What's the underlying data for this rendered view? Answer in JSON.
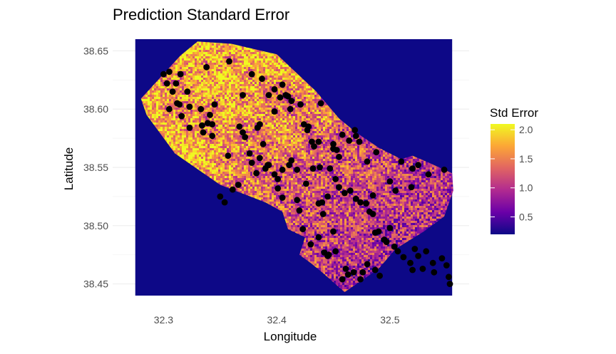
{
  "chart_data": {
    "type": "heatmap",
    "title": "Prediction Standard Error",
    "xlabel": "Longitude",
    "ylabel": "Latitude",
    "xlim": [
      32.255,
      32.57
    ],
    "ylim": [
      38.44,
      38.66
    ],
    "panel_extent": {
      "x": [
        32.275,
        32.555
      ],
      "y": [
        38.44,
        38.66
      ]
    },
    "x_ticks": [
      32.3,
      32.4,
      32.5
    ],
    "x_tick_labels": [
      "32.3",
      "32.4",
      "32.5"
    ],
    "y_ticks": [
      38.45,
      38.5,
      38.55,
      38.6,
      38.65
    ],
    "y_tick_labels": [
      "38.45",
      "38.50",
      "38.55",
      "38.60",
      "38.65"
    ],
    "grid": true,
    "legend": {
      "title": "Std Error",
      "position": "right",
      "min": 0.2,
      "max": 2.1,
      "ticks": [
        0.5,
        1.0,
        1.5,
        2.0
      ],
      "tick_labels": [
        "0.5",
        "1.0",
        "1.5",
        "2.0"
      ]
    },
    "background_value": 0.2,
    "colormap": "plasma",
    "colors": [
      "#0d0887",
      "#6a00a8",
      "#b12a90",
      "#e16462",
      "#fca636",
      "#f0f921"
    ],
    "study_area_boundary": [
      [
        32.28,
        38.609
      ],
      [
        32.315,
        38.646
      ],
      [
        32.33,
        38.658
      ],
      [
        32.36,
        38.656
      ],
      [
        32.4,
        38.647
      ],
      [
        32.435,
        38.615
      ],
      [
        32.455,
        38.592
      ],
      [
        32.47,
        38.58
      ],
      [
        32.49,
        38.567
      ],
      [
        32.51,
        38.557
      ],
      [
        32.52,
        38.56
      ],
      [
        32.53,
        38.556
      ],
      [
        32.555,
        38.545
      ],
      [
        32.556,
        38.53
      ],
      [
        32.548,
        38.508
      ],
      [
        32.53,
        38.495
      ],
      [
        32.505,
        38.48
      ],
      [
        32.49,
        38.463
      ],
      [
        32.46,
        38.443
      ],
      [
        32.44,
        38.46
      ],
      [
        32.43,
        38.468
      ],
      [
        32.42,
        38.475
      ],
      [
        32.425,
        38.49
      ],
      [
        32.41,
        38.497
      ],
      [
        32.405,
        38.512
      ],
      [
        32.39,
        38.52
      ],
      [
        32.35,
        38.535
      ],
      [
        32.31,
        38.562
      ],
      [
        32.285,
        38.595
      ]
    ],
    "points": {
      "series_name": "",
      "lon": [
        32.3,
        32.305,
        32.303,
        32.308,
        32.315,
        32.312,
        32.316,
        32.305,
        32.311,
        32.321,
        32.314,
        32.323,
        32.338,
        32.333,
        32.343,
        32.358,
        32.37,
        32.378,
        32.387,
        32.398,
        32.393,
        32.405,
        32.41,
        32.412,
        32.421,
        32.439,
        32.323,
        32.334,
        32.339,
        32.341,
        32.335,
        32.345,
        32.357,
        32.343,
        32.367,
        32.372,
        32.37,
        32.376,
        32.383,
        32.385,
        32.388,
        32.398,
        32.403,
        32.408,
        32.413,
        32.424,
        32.428,
        32.427,
        32.431,
        32.433,
        32.45,
        32.453,
        32.455,
        32.47,
        32.473,
        32.48,
        32.488,
        32.469,
        32.458,
        32.464,
        32.437,
        32.438,
        32.45,
        32.378,
        32.382,
        32.385,
        32.39,
        32.392,
        32.398,
        32.401,
        32.405,
        32.411,
        32.413,
        32.418,
        32.426,
        32.432,
        32.447,
        32.452,
        32.455,
        32.44,
        32.445,
        32.437,
        32.441,
        32.46,
        32.465,
        32.47,
        32.474,
        32.479,
        32.482,
        32.485,
        32.487,
        32.49,
        32.495,
        32.497,
        32.5,
        32.504,
        32.507,
        32.512,
        32.518,
        32.52,
        32.522,
        32.525,
        32.529,
        32.532,
        32.538,
        32.539,
        32.546,
        32.55,
        32.552,
        32.553,
        32.485,
        32.5,
        32.505,
        32.51,
        32.52,
        32.525,
        32.519,
        32.534,
        32.548,
        32.354,
        32.35,
        32.361,
        32.366,
        32.393,
        32.401,
        32.405,
        32.418,
        32.42,
        32.423,
        32.43,
        32.437,
        32.442,
        32.445,
        32.461,
        32.468,
        32.476,
        32.48,
        32.487,
        32.491,
        32.446,
        32.452,
        32.458,
        32.474,
        32.463,
        32.45
      ],
      "lat": [
        38.63,
        38.632,
        38.622,
        38.615,
        38.63,
        38.605,
        38.594,
        38.6,
        38.622,
        38.615,
        38.604,
        38.602,
        38.636,
        38.6,
        38.587,
        38.641,
        38.612,
        38.63,
        38.626,
        38.617,
        38.612,
        38.621,
        38.611,
        38.6,
        38.604,
        38.605,
        38.584,
        38.586,
        38.588,
        38.595,
        38.58,
        38.604,
        38.56,
        38.577,
        38.585,
        38.576,
        38.58,
        38.562,
        38.584,
        38.587,
        38.57,
        38.598,
        38.61,
        38.612,
        38.607,
        38.587,
        38.585,
        38.582,
        38.572,
        38.568,
        38.57,
        38.565,
        38.559,
        38.577,
        38.572,
        38.555,
        38.563,
        38.582,
        38.578,
        38.573,
        38.572,
        38.55,
        38.566,
        38.554,
        38.545,
        38.558,
        38.549,
        38.552,
        38.544,
        38.54,
        38.548,
        38.552,
        38.556,
        38.548,
        38.536,
        38.549,
        38.549,
        38.54,
        38.533,
        38.52,
        38.525,
        38.519,
        38.51,
        38.528,
        38.53,
        38.523,
        38.52,
        38.519,
        38.512,
        38.51,
        38.494,
        38.495,
        38.488,
        38.486,
        38.498,
        38.482,
        38.478,
        38.473,
        38.468,
        38.462,
        38.48,
        38.474,
        38.463,
        38.478,
        38.468,
        38.46,
        38.472,
        38.466,
        38.456,
        38.45,
        38.526,
        38.538,
        38.53,
        38.555,
        38.549,
        38.552,
        38.533,
        38.544,
        38.548,
        38.52,
        38.525,
        38.531,
        38.535,
        38.552,
        38.532,
        38.524,
        38.522,
        38.513,
        38.497,
        38.484,
        38.49,
        38.477,
        38.474,
        38.463,
        38.46,
        38.46,
        38.467,
        38.462,
        38.457,
        38.475,
        38.478,
        38.454,
        38.454,
        38.458,
        38.495
      ],
      "marker_color": "#000000"
    }
  }
}
